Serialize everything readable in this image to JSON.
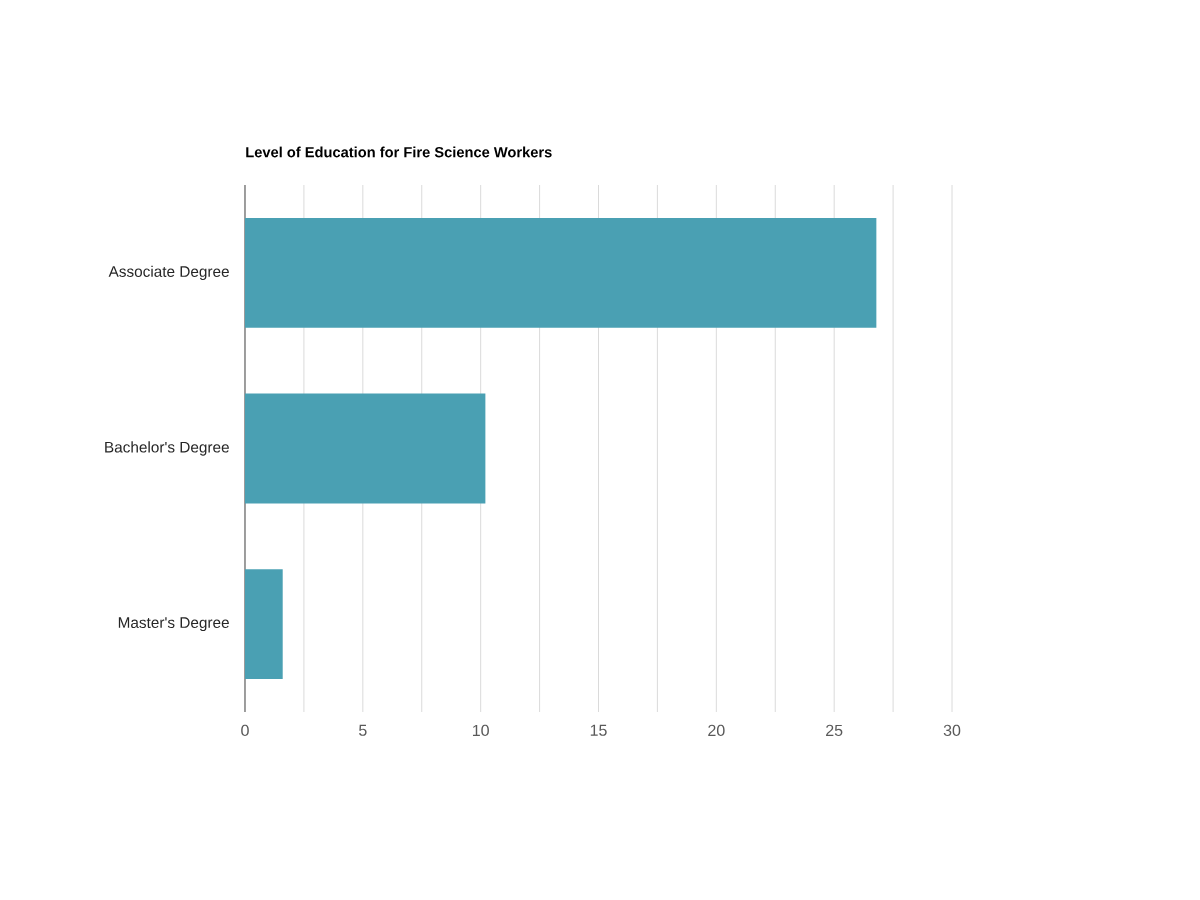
{
  "chart_data": {
    "type": "bar",
    "orientation": "horizontal",
    "title": "Level of Education for Fire Science Workers",
    "categories": [
      "Associate Degree",
      "Bachelor's Degree",
      "Master's Degree"
    ],
    "values": [
      26.8,
      10.2,
      1.6
    ],
    "color": "#4aa0b3",
    "xlim": [
      0,
      30
    ],
    "xticks": [
      0,
      {
        "value": 2.5,
        "label": null
      },
      5,
      {
        "value": 7.5,
        "label": null
      },
      10,
      {
        "value": 12.5,
        "label": null
      },
      15,
      {
        "value": 17.5,
        "label": null
      },
      20,
      {
        "value": 22.5,
        "label": null
      },
      25,
      {
        "value": 27.5,
        "label": null
      },
      30
    ],
    "grid": "x"
  }
}
